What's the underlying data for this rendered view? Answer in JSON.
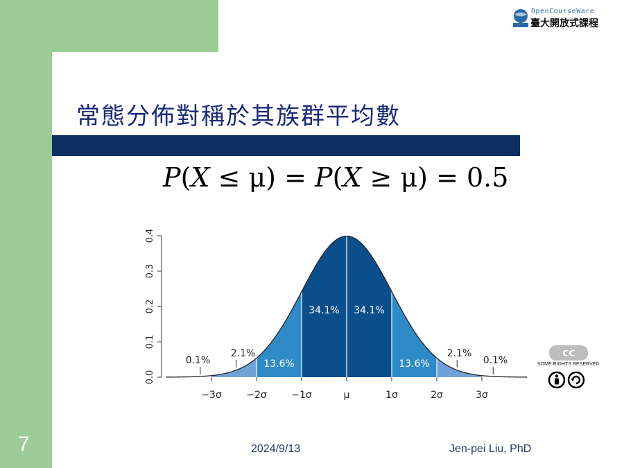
{
  "logo": {
    "top_text": "OpenCourseWare",
    "bottom_text": "臺大開放式課程",
    "mark": "ntu-ocw-logo"
  },
  "slide": {
    "title": "常態分佈對稱於其族群平均數",
    "formula": {
      "part1": "P",
      "part2": "(",
      "part3": "X",
      "part4": " ≤ μ) = ",
      "part5": "P",
      "part6": "(",
      "part7": "X",
      "part8": " ≥ μ) = 0.5"
    },
    "number": "7",
    "date": "2024/9/13",
    "author": "Jen-pei Liu, PhD"
  },
  "license": {
    "logo": "cc",
    "text": "SOME RIGHTS RESERVED",
    "icons": [
      "attribution-icon",
      "share-alike-icon"
    ]
  },
  "chart_data": {
    "type": "area",
    "title": "",
    "xlabel": "",
    "ylabel": "",
    "x_ticks": [
      "−3σ",
      "−2σ",
      "−1σ",
      "μ",
      "1σ",
      "2σ",
      "3σ"
    ],
    "x_tick_values": [
      -3,
      -2,
      -1,
      0,
      1,
      2,
      3
    ],
    "y_ticks": [
      "0.0",
      "0.1",
      "0.2",
      "0.3",
      "0.4"
    ],
    "y_tick_values": [
      0,
      0.1,
      0.2,
      0.3,
      0.4
    ],
    "xlim": [
      -4,
      4
    ],
    "ylim": [
      0,
      0.4
    ],
    "curve": "standard normal density",
    "regions": [
      {
        "from": -3,
        "to": -2,
        "label": "2.1%",
        "color": "#6fa2d8"
      },
      {
        "from": -2,
        "to": -1,
        "label": "13.6%",
        "color": "#2e8bc8"
      },
      {
        "from": -1,
        "to": 0,
        "label": "34.1%",
        "color": "#0a4f8c"
      },
      {
        "from": 0,
        "to": 1,
        "label": "34.1%",
        "color": "#0a4f8c"
      },
      {
        "from": 1,
        "to": 2,
        "label": "13.6%",
        "color": "#2e8bc8"
      },
      {
        "from": 2,
        "to": 3,
        "label": "2.1%",
        "color": "#6fa2d8"
      }
    ],
    "tails": [
      {
        "side": "left",
        "label": "0.1%"
      },
      {
        "side": "right",
        "label": "0.1%"
      }
    ]
  }
}
